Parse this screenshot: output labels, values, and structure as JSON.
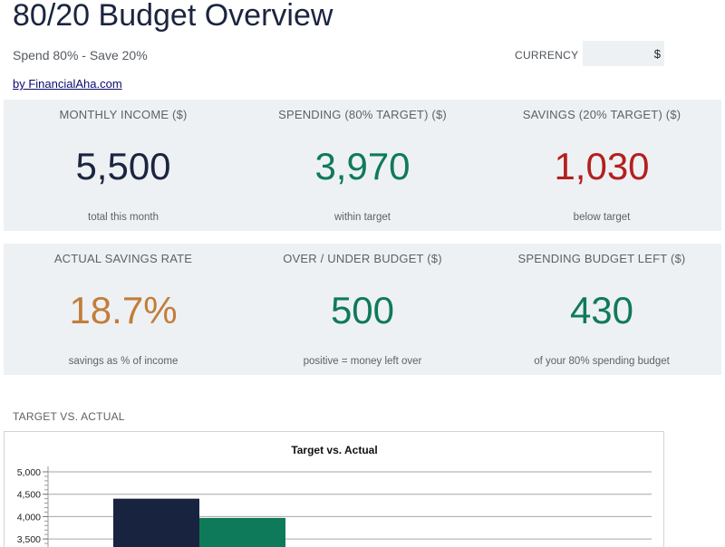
{
  "header": {
    "title": "80/20 Budget Overview",
    "subtitle": "Spend 80% - Save 20%",
    "byline": "by FinancialAha.com",
    "currency_label": "CURRENCY",
    "currency_value": "$"
  },
  "kpis_row1": [
    {
      "label": "MONTHLY INCOME ($)",
      "value": "5,500",
      "note": "total this month",
      "color": "#1b2540"
    },
    {
      "label": "SPENDING (80% TARGET) ($)",
      "value": "3,970",
      "note": "within target",
      "color": "#0f7a5a"
    },
    {
      "label": "SAVINGS (20% TARGET) ($)",
      "value": "1,030",
      "note": "below target",
      "color": "#b3201e"
    }
  ],
  "kpis_row2": [
    {
      "label": "ACTUAL SAVINGS RATE",
      "value": "18.7%",
      "note": "savings as % of income",
      "color": "#c27d3a"
    },
    {
      "label": "OVER / UNDER BUDGET ($)",
      "value": "500",
      "note": "positive = money left over",
      "color": "#0f7a5a"
    },
    {
      "label": "SPENDING BUDGET LEFT ($)",
      "value": "430",
      "note": "of your 80% spending budget",
      "color": "#0f7a5a"
    }
  ],
  "chart_section_label": "TARGET VS. ACTUAL",
  "chart_data": {
    "type": "bar",
    "title": "Target vs. Actual",
    "series": [
      {
        "values": [
          4400
        ],
        "color": "#18233f"
      },
      {
        "values": [
          3970
        ],
        "color": "#0f7a5a"
      }
    ],
    "yticks": [
      "5,000",
      "4,500",
      "4,000",
      "3,500"
    ],
    "ytick_values": [
      5000,
      4500,
      4000,
      3500
    ],
    "ylim": [
      3300,
      5000
    ],
    "grid": true
  }
}
